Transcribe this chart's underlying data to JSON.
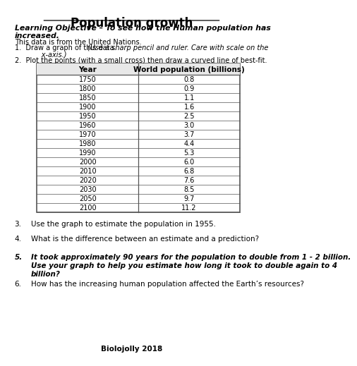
{
  "title": "Population growth",
  "learning_objective_1": "Learning Objective – To see how the Human population has",
  "learning_objective_2": "increased.",
  "data_source": "This data is from the United Nations.",
  "instr1a": "1.  Draw a graph of this data. ",
  "instr1b": "(Use a sharp pencil and ruler. Care with scale on the",
  "instr1c": "      x-axis.)",
  "instr2": "2.  Plot the points (with a small cross) then draw a curved line of best-fit.",
  "table_headers": [
    "Year",
    "World population (billions)"
  ],
  "table_data": [
    [
      1750,
      "0.8"
    ],
    [
      1800,
      "0.9"
    ],
    [
      1850,
      "1.1"
    ],
    [
      1900,
      "1.6"
    ],
    [
      1950,
      "2.5"
    ],
    [
      1960,
      "3.0"
    ],
    [
      1970,
      "3.7"
    ],
    [
      1980,
      "4.4"
    ],
    [
      1990,
      "5.3"
    ],
    [
      2000,
      "6.0"
    ],
    [
      2010,
      "6.8"
    ],
    [
      2020,
      "7.6"
    ],
    [
      2030,
      "8.5"
    ],
    [
      2050,
      "9.7"
    ],
    [
      2100,
      "11.2"
    ]
  ],
  "q3": "Use the graph to estimate the population in 1955.",
  "q4": "What is the difference between an estimate and a prediction?",
  "q5a": "It took approximately 90 years for the population to double from 1 - 2 billion.",
  "q5b": "Use your graph to help you estimate how long it took to double again to 4",
  "q5c": "billion?",
  "q6": "How has the increasing human population affected the Earth’s resources?",
  "footer": "Biolojolly 2018",
  "bg_color": "#ffffff",
  "text_color": "#000000",
  "table_border_color": "#555555"
}
